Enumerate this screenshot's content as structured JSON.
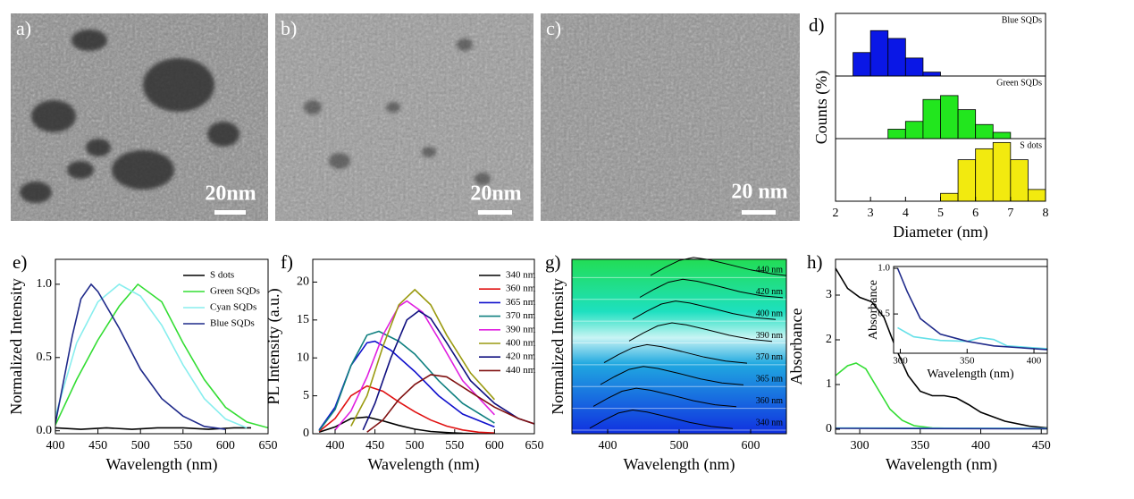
{
  "images": [
    {
      "label": "a)",
      "scale": "20nm"
    },
    {
      "label": "b)",
      "scale": "20nm"
    },
    {
      "label": "c)",
      "scale": "20 nm"
    }
  ],
  "chart_data": [
    {
      "type": "histogram",
      "label": "d)",
      "xlabel": "Diameter (nm)",
      "ylabel": "Counts (%)",
      "xlim": [
        2,
        8
      ],
      "xticks": [
        2,
        3,
        4,
        5,
        6,
        7,
        8
      ],
      "ylim": [
        0,
        80
      ],
      "series": [
        {
          "name": "Blue SQDs",
          "color": "#0a17e6",
          "bins": [
            2.5,
            3,
            3.5,
            4,
            4.5,
            5
          ],
          "values": [
            30,
            58,
            48,
            23,
            5
          ]
        },
        {
          "name": "Green SQDs",
          "color": "#22e61e",
          "bins": [
            3.5,
            4,
            4.5,
            5,
            5.5,
            6,
            6.5,
            7
          ],
          "values": [
            12,
            22,
            50,
            55,
            37,
            18,
            8
          ]
        },
        {
          "name": "S dots",
          "color": "#f2ea0f",
          "bins": [
            5,
            5.5,
            6,
            6.5,
            7,
            7.5,
            8
          ],
          "values": [
            10,
            53,
            67,
            75,
            53,
            15
          ]
        }
      ]
    },
    {
      "type": "line",
      "label": "e)",
      "xlabel": "Wavelength (nm)",
      "ylabel": "Normalized Intensity",
      "xlim": [
        400,
        650
      ],
      "xticks": [
        400,
        450,
        500,
        550,
        600,
        650
      ],
      "ylim": [
        -0.02,
        1.17
      ],
      "yticks": [
        {
          "value": 0,
          "label": "0.0"
        },
        0.5,
        {
          "value": 1,
          "label": "1.0"
        }
      ],
      "legend": "upper right",
      "series": [
        {
          "name": "S dots",
          "color": "#000000",
          "x": [
            400,
            430,
            460,
            490,
            520,
            550,
            580,
            610,
            630
          ],
          "values": [
            0.02,
            0.01,
            0.02,
            0.01,
            0.02,
            0.02,
            0.01,
            0.02,
            0.02
          ]
        },
        {
          "name": "Green SQDs",
          "color": "#33dd33",
          "x": [
            400,
            425,
            450,
            475,
            497,
            525,
            550,
            575,
            600,
            625,
            650
          ],
          "values": [
            0.04,
            0.35,
            0.62,
            0.85,
            1.0,
            0.88,
            0.6,
            0.35,
            0.16,
            0.06,
            0.02
          ]
        },
        {
          "name": "Cyan SQDs",
          "color": "#88eeee",
          "x": [
            400,
            425,
            450,
            475,
            500,
            525,
            550,
            575,
            600,
            625
          ],
          "values": [
            0.1,
            0.6,
            0.88,
            1.0,
            0.92,
            0.72,
            0.45,
            0.22,
            0.08,
            0.02
          ]
        },
        {
          "name": "Blue SQDs",
          "color": "#1f2a8a",
          "x": [
            400,
            410,
            420,
            430,
            442,
            450,
            475,
            500,
            525,
            550,
            575,
            600
          ],
          "values": [
            0.05,
            0.35,
            0.65,
            0.9,
            1.0,
            0.95,
            0.7,
            0.42,
            0.22,
            0.1,
            0.03,
            0.01
          ]
        }
      ]
    },
    {
      "type": "line",
      "label": "f)",
      "xlabel": "Wavelength (nm)",
      "ylabel": "PL Intensity (a.u.)",
      "xlim": [
        372,
        650
      ],
      "xticks": [
        400,
        450,
        500,
        550,
        600,
        650
      ],
      "ylim": [
        0,
        23
      ],
      "yticks": [
        0,
        5,
        10,
        15,
        20
      ],
      "legend": "upper right",
      "series": [
        {
          "name": "340 nm",
          "color": "#000000",
          "x": [
            380,
            400,
            420,
            440,
            460,
            480,
            500,
            520,
            540,
            560,
            580,
            600
          ],
          "values": [
            0.2,
            0.9,
            2.0,
            2.2,
            1.7,
            1.1,
            0.6,
            0.3,
            0.15,
            0.05,
            0,
            0
          ]
        },
        {
          "name": "360 nm",
          "color": "#e01010",
          "x": [
            380,
            400,
            420,
            440,
            460,
            480,
            500,
            520,
            540,
            560,
            580,
            600
          ],
          "values": [
            0.3,
            2.0,
            5.0,
            6.3,
            5.6,
            4.2,
            2.9,
            1.8,
            1.0,
            0.5,
            0.2,
            0.1
          ]
        },
        {
          "name": "365 nm",
          "color": "#1010cc",
          "x": [
            380,
            400,
            420,
            440,
            450,
            470,
            500,
            530,
            560,
            600
          ],
          "values": [
            0.5,
            3.5,
            9,
            12,
            12.2,
            11,
            8.2,
            5,
            2.6,
            0.9
          ]
        },
        {
          "name": "370 nm",
          "color": "#108080",
          "x": [
            380,
            400,
            420,
            440,
            455,
            480,
            500,
            530,
            560,
            600
          ],
          "values": [
            0.4,
            3.2,
            9,
            13,
            13.5,
            12.2,
            10.5,
            7,
            4,
            1.4
          ]
        },
        {
          "name": "390 nm",
          "color": "#e020e0",
          "x": [
            400,
            420,
            440,
            460,
            480,
            490,
            510,
            530,
            560,
            600
          ],
          "values": [
            0.5,
            3,
            7.5,
            13,
            16.8,
            17.5,
            16,
            12.5,
            7,
            2.5
          ]
        },
        {
          "name": "400 nm",
          "color": "#9a9a10",
          "x": [
            420,
            440,
            460,
            480,
            500,
            520,
            540,
            570,
            600
          ],
          "values": [
            1,
            5,
            11.5,
            17,
            19,
            17,
            13,
            8,
            4.5
          ]
        },
        {
          "name": "420 nm",
          "color": "#101080",
          "x": [
            435,
            450,
            470,
            490,
            505,
            520,
            540,
            570,
            600,
            630,
            650
          ],
          "values": [
            0.5,
            4,
            10,
            15,
            16.2,
            15.2,
            12,
            7,
            4,
            2,
            1.3
          ]
        },
        {
          "name": "440 nm",
          "color": "#801010",
          "x": [
            440,
            460,
            480,
            500,
            520,
            540,
            570,
            600,
            630,
            650
          ],
          "values": [
            0.2,
            1.8,
            4.5,
            6.5,
            7.8,
            7.5,
            5.5,
            3.5,
            2,
            1.3
          ]
        }
      ]
    },
    {
      "type": "stacked-line",
      "label": "g)",
      "xlabel": "Wavelength (nm)",
      "ylabel": "Normalized Intensity",
      "xlim": [
        350,
        650
      ],
      "xticks": [
        400,
        500,
        600
      ],
      "ylim": [
        0,
        1.3
      ],
      "series": [
        {
          "name": "340 nm",
          "x": [
            375,
            395,
            415,
            435,
            455,
            485,
            515,
            545,
            575
          ],
          "values": [
            0.1,
            0.5,
            0.85,
            1,
            0.9,
            0.65,
            0.38,
            0.18,
            0.08
          ]
        },
        {
          "name": "360 nm",
          "x": [
            380,
            400,
            420,
            440,
            460,
            490,
            520,
            550,
            580
          ],
          "values": [
            0.1,
            0.5,
            0.85,
            1,
            0.9,
            0.65,
            0.38,
            0.18,
            0.08
          ]
        },
        {
          "name": "365 nm",
          "x": [
            390,
            410,
            430,
            450,
            470,
            500,
            530,
            560,
            590
          ],
          "values": [
            0.1,
            0.5,
            0.85,
            1,
            0.9,
            0.65,
            0.38,
            0.18,
            0.08
          ]
        },
        {
          "name": "370 nm",
          "x": [
            395,
            415,
            435,
            455,
            475,
            505,
            535,
            565,
            595
          ],
          "values": [
            0.1,
            0.5,
            0.85,
            1,
            0.9,
            0.65,
            0.38,
            0.18,
            0.08
          ]
        },
        {
          "name": "390 nm",
          "x": [
            430,
            450,
            470,
            490,
            510,
            540,
            570,
            600,
            630
          ],
          "values": [
            0.1,
            0.5,
            0.85,
            1,
            0.9,
            0.65,
            0.38,
            0.18,
            0.08
          ]
        },
        {
          "name": "400 nm",
          "x": [
            435,
            455,
            475,
            495,
            515,
            545,
            575,
            605,
            635
          ],
          "values": [
            0.1,
            0.5,
            0.85,
            1,
            0.9,
            0.65,
            0.38,
            0.18,
            0.08
          ]
        },
        {
          "name": "420 nm",
          "x": [
            445,
            465,
            485,
            505,
            525,
            555,
            585,
            615,
            645
          ],
          "values": [
            0.1,
            0.5,
            0.85,
            1,
            0.9,
            0.65,
            0.38,
            0.18,
            0.08
          ]
        },
        {
          "name": "440 nm",
          "x": [
            460,
            480,
            500,
            520,
            540,
            570,
            600,
            630,
            650
          ],
          "values": [
            0.1,
            0.5,
            0.85,
            1,
            0.9,
            0.65,
            0.38,
            0.18,
            0.1
          ]
        }
      ]
    },
    {
      "type": "line",
      "label": "h)",
      "xlabel": "Wavelength (nm)",
      "ylabel": "Absorbance",
      "xlim": [
        280,
        455
      ],
      "xticks": [
        300,
        350,
        400,
        450
      ],
      "ylim": [
        -0.1,
        3.8
      ],
      "yticks": [
        0,
        1,
        2,
        3
      ],
      "legend": "upper right",
      "series": [
        {
          "name": "S dots",
          "color": "#000000",
          "x": [
            280,
            290,
            300,
            310,
            320,
            330,
            340,
            350,
            360,
            370,
            380,
            390,
            400,
            420,
            440,
            455
          ],
          "values": [
            3.6,
            3.15,
            2.95,
            2.85,
            2.5,
            1.8,
            1.2,
            0.85,
            0.75,
            0.75,
            0.7,
            0.55,
            0.38,
            0.18,
            0.07,
            0.03
          ]
        },
        {
          "name": "Green SQDs",
          "color": "#33dd33",
          "x": [
            280,
            290,
            297,
            305,
            315,
            325,
            335,
            345,
            360,
            380,
            455
          ],
          "values": [
            1.2,
            1.42,
            1.48,
            1.35,
            0.9,
            0.45,
            0.2,
            0.08,
            0.03,
            0.02,
            0.01
          ]
        },
        {
          "name": "Cyan SQDs",
          "color": "#66e0e8",
          "x": [
            280,
            455
          ],
          "values": [
            0.03,
            0.02
          ]
        },
        {
          "name": "Blue SQDs",
          "color": "#1f2a8a",
          "x": [
            280,
            455
          ],
          "values": [
            0.02,
            0.01
          ]
        }
      ]
    },
    {
      "type": "line",
      "xlabel": "Wavelength (nm)",
      "ylabel": "Absorbance",
      "xlim": [
        295,
        410
      ],
      "xticks": [
        300,
        350,
        400
      ],
      "ylim": [
        0.07,
        1.02
      ],
      "yticks": [
        0.5,
        {
          "value": 1,
          "label": "1.0"
        }
      ],
      "series": [
        {
          "color": "#66e0e8",
          "x": [
            298,
            310,
            330,
            350,
            360,
            370,
            380,
            400,
            410
          ],
          "values": [
            0.35,
            0.25,
            0.21,
            0.2,
            0.24,
            0.22,
            0.15,
            0.13,
            0.12
          ]
        },
        {
          "color": "#1f2a8a",
          "x": [
            298,
            305,
            315,
            330,
            350,
            370,
            400,
            410
          ],
          "values": [
            1.0,
            0.75,
            0.45,
            0.28,
            0.2,
            0.15,
            0.12,
            0.11
          ]
        }
      ]
    }
  ]
}
